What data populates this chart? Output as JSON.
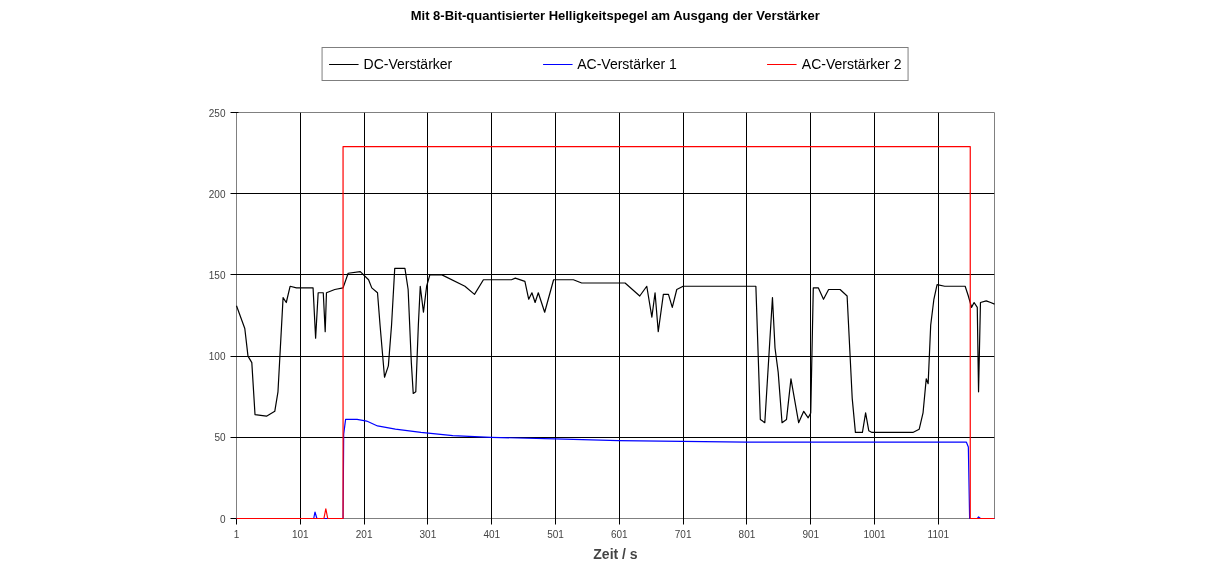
{
  "chart_data": {
    "type": "line",
    "title": "Mit 8-Bit-quantisierter Helligkeitspegel am Ausgang der Verstärker",
    "xlabel": "Zeit / s",
    "xlim": [
      1,
      1189
    ],
    "xticks": [
      1,
      101,
      201,
      301,
      401,
      501,
      601,
      701,
      801,
      901,
      1001,
      1101
    ],
    "ylim": [
      0,
      250
    ],
    "yticks": [
      0,
      50,
      100,
      150,
      200,
      250
    ],
    "grid": true,
    "legend": "top",
    "marker": "none",
    "line_style": "solid",
    "series": [
      {
        "name": "DC-Verstärker",
        "color": "#000000",
        "x": [
          1,
          14,
          19,
          25,
          30,
          48,
          61,
          66,
          74,
          79,
          85,
          95,
          121,
          125,
          129,
          137,
          140,
          142,
          155,
          168,
          176,
          195,
          208,
          213,
          222,
          226,
          233,
          239,
          244,
          249,
          265,
          270,
          275,
          278,
          282,
          286,
          289,
          294,
          299,
          304,
          323,
          359,
          374,
          388,
          432,
          438,
          453,
          459,
          464,
          469,
          474,
          484,
          498,
          501,
          529,
          542,
          610,
          633,
          644,
          652,
          657,
          662,
          670,
          678,
          684,
          691,
          701,
          815,
          822,
          829,
          841,
          845,
          850,
          856,
          863,
          870,
          882,
          890,
          897,
          901,
          905,
          913,
          921,
          929,
          947,
          958,
          966,
          971,
          982,
          987,
          992,
          997,
          1061,
          1071,
          1077,
          1082,
          1085,
          1089,
          1094,
          1099,
          1111,
          1143,
          1148,
          1153,
          1157,
          1162,
          1164,
          1167,
          1176,
          1183,
          1189
        ],
        "values": [
          131,
          117,
          100,
          96,
          64,
          63,
          66,
          78,
          136,
          133,
          143,
          142,
          142,
          111,
          139,
          139,
          115,
          139,
          141,
          142,
          151,
          152,
          147,
          142,
          139,
          119,
          87,
          94,
          119,
          154,
          154,
          141,
          96,
          77,
          78,
          119,
          143,
          127,
          143,
          150,
          150,
          143,
          138,
          147,
          147,
          148,
          146,
          135,
          139,
          133,
          139,
          127,
          147,
          147,
          147,
          145,
          145,
          137,
          143,
          124,
          139,
          115,
          138,
          138,
          130,
          141,
          143,
          143,
          61,
          59,
          136,
          105,
          90,
          59,
          61,
          86,
          59,
          66,
          62,
          65,
          142,
          142,
          135,
          141,
          141,
          137,
          74,
          53,
          53,
          65,
          54,
          53,
          53,
          55,
          65,
          86,
          83,
          119,
          135,
          144,
          143,
          143,
          137,
          130,
          133,
          130,
          78,
          133,
          134,
          133,
          132
        ]
      },
      {
        "name": "AC-Verstärker 1",
        "color": "#0000ff",
        "x": [
          1,
          122,
          124,
          127,
          168,
          169,
          172,
          190,
          205,
          222,
          250,
          290,
          340,
          400,
          500,
          600,
          800,
          1000,
          1145,
          1148,
          1150,
          1162,
          1164,
          1167,
          1189
        ],
        "values": [
          0,
          0,
          4,
          0,
          0,
          52,
          61,
          61,
          60,
          57,
          55,
          53,
          51,
          50,
          49,
          48,
          47,
          47,
          47,
          44,
          0,
          0,
          1,
          0,
          0
        ]
      },
      {
        "name": "AC-Verstärker 2",
        "color": "#ff0000",
        "x": [
          1,
          138,
          141,
          144,
          168,
          168,
          1151,
          1151,
          1189
        ],
        "values": [
          0,
          0,
          6,
          0,
          0,
          229,
          229,
          0,
          0
        ]
      }
    ]
  }
}
